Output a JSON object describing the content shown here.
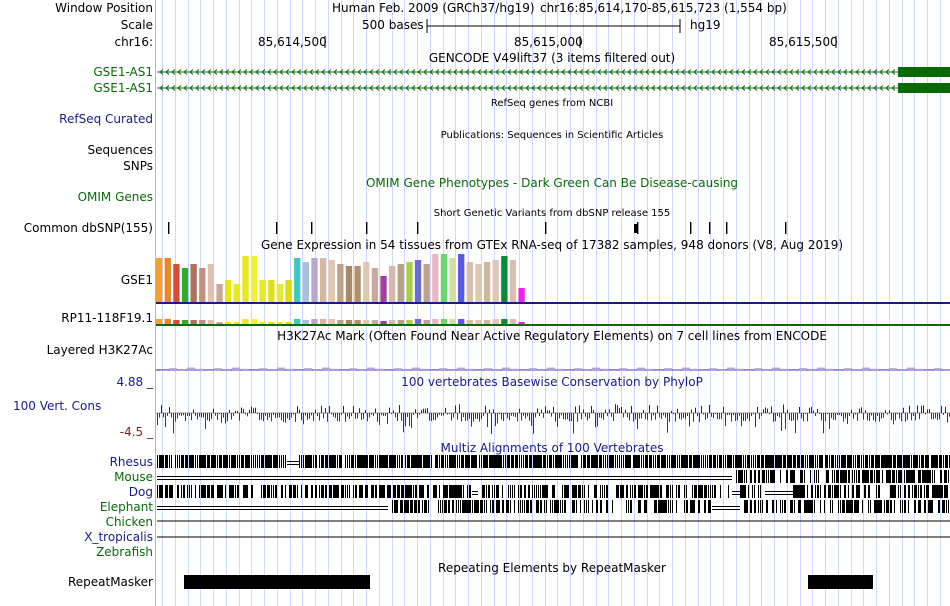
{
  "header": {
    "window_position_label": "Window Position",
    "assembly": "Human Feb. 2009 (GRCh37/hg19)",
    "position": "chr16:85,614,170-85,615,723 (1,554 bp)",
    "scale_label": "Scale",
    "scale_text": "500 bases",
    "scale_db": "hg19",
    "chrom_label": "chr16:",
    "ticks": [
      "85,614,500",
      "85,615,000",
      "85,615,500"
    ]
  },
  "tracks": {
    "gencode": {
      "title": "GENCODE V49lift37 (3 items filtered out)",
      "items": [
        "GSE1-AS1",
        "GSE1-AS1"
      ]
    },
    "refseq": {
      "title": "RefSeq genes from NCBI",
      "label": "RefSeq Curated"
    },
    "publications": {
      "title": "Publications: Sequences in Scientific Articles",
      "label1": "Sequences",
      "label2": "SNPs"
    },
    "omim": {
      "title": "OMIM Gene Phenotypes - Dark Green Can Be Disease-causing",
      "label": "OMIM Genes"
    },
    "dbsnp": {
      "title": "Short Genetic Variants from dbSNP release 155",
      "label": "Common dbSNP(155)"
    },
    "gtex": {
      "title": "Gene Expression in 54 tissues from GTEx RNA-seq of 17382 samples, 948 donors (V8, Aug 2019)",
      "gene1": "GSE1",
      "gene2": "RP11-118F19.1"
    },
    "h3k27ac": {
      "title": "H3K27Ac Mark (Often Found Near Active Regulatory Elements) on 7 cell lines from ENCODE",
      "label": "Layered H3K27Ac"
    },
    "phylop": {
      "title": "100 vertebrates Basewise Conservation by PhyloP",
      "label": "100 Vert. Cons",
      "max": "4.88 _",
      "min": "-4.5 _"
    },
    "multiz": {
      "title": "Multiz Alignments of 100 Vertebrates",
      "species": [
        "Rhesus",
        "Mouse",
        "Dog",
        "Elephant",
        "Chicken",
        "X_tropicalis",
        "Zebrafish"
      ]
    },
    "repeatmasker": {
      "title": "Repeating Elements by RepeatMasker",
      "label": "RepeatMasker"
    }
  },
  "colors": {
    "gencode": "#0a6a0a",
    "navy": "#1a1a8a",
    "phylop_pos": "#1a1ab0",
    "phylop_neg": "#8a1a1a",
    "grid": "#cfd6ff"
  },
  "gtex_bar_colors": [
    "#f5a030",
    "#e8862a",
    "#d64b3a",
    "#33aa33",
    "#b07060",
    "#c09080",
    "#e0c0b0",
    "#c8a898",
    "#e8e80a",
    "#e8e820",
    "#e8e820",
    "#f0f030",
    "#e8e820",
    "#e0e010",
    "#e8e830",
    "#dcdc10",
    "#40c8c0",
    "#a8c0e0",
    "#b8a8d0",
    "#d4b8a0",
    "#e0c8b0",
    "#c0a088",
    "#a88868",
    "#b09070",
    "#e0c8b0",
    "#c8a8a0",
    "#a040a0",
    "#d8b8a8",
    "#b8a080",
    "#a8d040",
    "#6a6adc",
    "#c0a090",
    "#e8b8c0",
    "#6ad870",
    "#d0e0a0",
    "#5858e8",
    "#d8c0a8",
    "#e0c8b0",
    "#d0b8a0",
    "#e0c8b8",
    "#0a8a3a",
    "#d8c0b0",
    "#f020f0"
  ],
  "gtex_bar_values": [
    44,
    44,
    38,
    34,
    38,
    34,
    38,
    18,
    22,
    18,
    46,
    46,
    22,
    22,
    18,
    22,
    44,
    40,
    44,
    44,
    42,
    38,
    36,
    36,
    40,
    34,
    26,
    36,
    38,
    40,
    42,
    38,
    48,
    48,
    44,
    48,
    40,
    38,
    40,
    42,
    46,
    42,
    14
  ]
}
